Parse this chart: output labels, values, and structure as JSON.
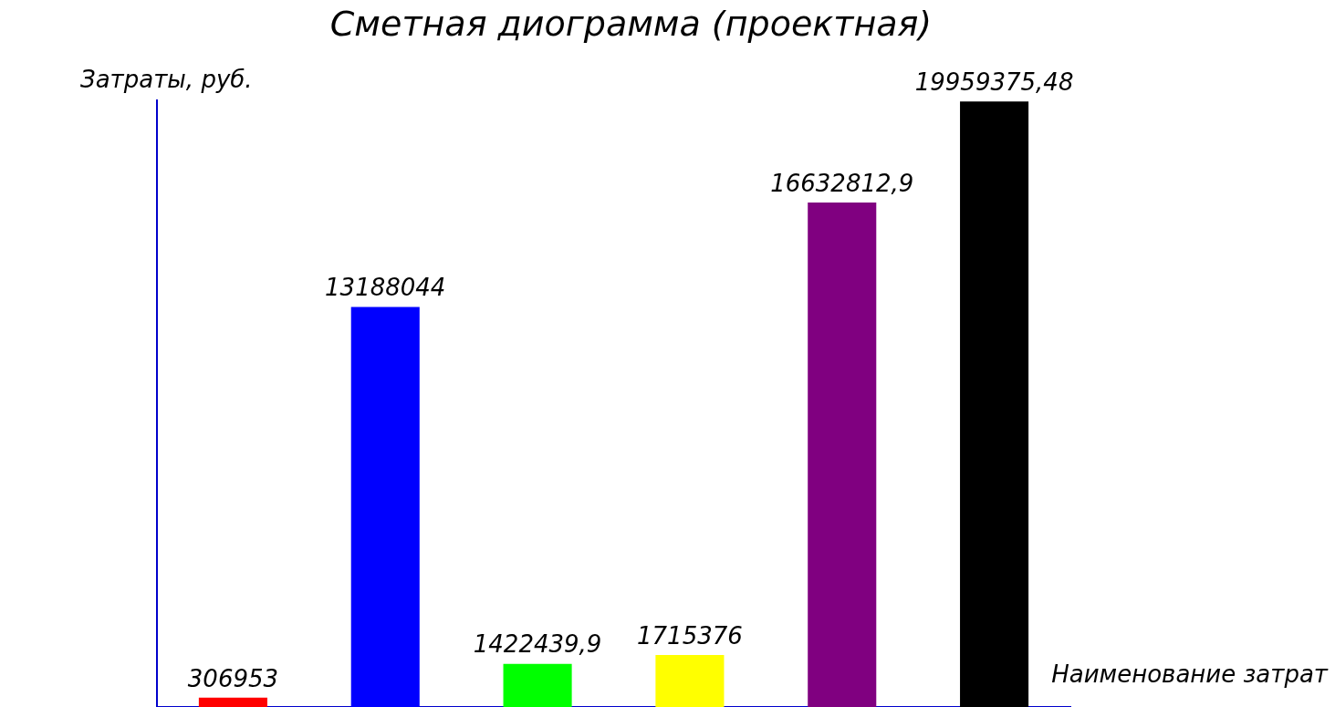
{
  "chart_data": {
    "type": "bar",
    "title": "Сметная диограмма (проектная)",
    "ylabel": "Затраты, руб.",
    "xlabel": "Наименование затрат",
    "categories": [
      null,
      null,
      null,
      null,
      null,
      null
    ],
    "values": [
      306953,
      13188044,
      1422439.9,
      1715376,
      16632812.9,
      19959375.48
    ],
    "value_labels": [
      "306953",
      "13188044",
      "1422439,9",
      "1715376",
      "16632812,9",
      "19959375,48"
    ],
    "colors": [
      "#ff0000",
      "#0000ff",
      "#00ff00",
      "#ffff00",
      "#800080",
      "#000000"
    ],
    "grid": false,
    "legend": false
  }
}
